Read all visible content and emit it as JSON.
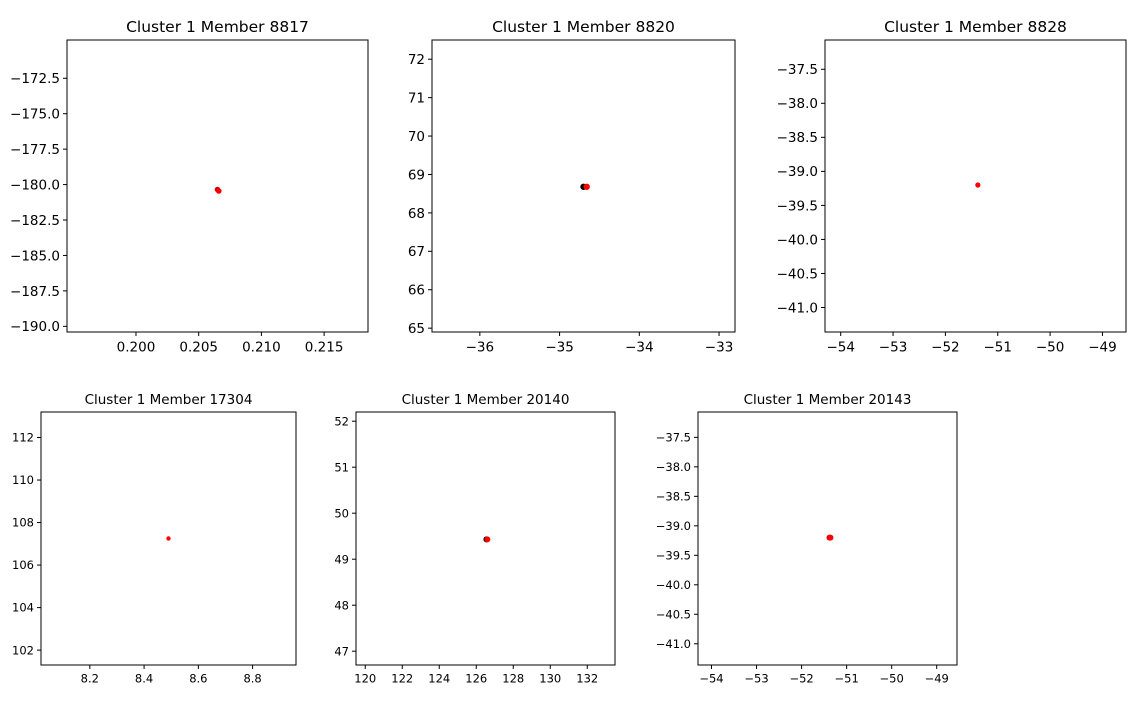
{
  "chart_data": [
    {
      "type": "scatter",
      "title": "Cluster 1 Member 8817",
      "xlim": [
        0.1945,
        0.2185
      ],
      "ylim": [
        -190.4,
        -169.8
      ],
      "xticks": [
        0.2,
        0.205,
        0.21,
        0.215
      ],
      "xtick_labels": [
        "0.200",
        "0.205",
        "0.210",
        "0.215"
      ],
      "yticks": [
        -172.5,
        -175.0,
        -177.5,
        -180.0,
        -182.5,
        -185.0,
        -187.5,
        -190.0
      ],
      "ytick_labels": [
        "−172.5",
        "−175.0",
        "−177.5",
        "−180.0",
        "−182.5",
        "−185.0",
        "−187.5",
        "−190.0"
      ],
      "points": [
        {
          "x": 0.2065,
          "y": -180.35,
          "color": "#cc0000"
        },
        {
          "x": 0.2066,
          "y": -180.45,
          "color": "#ff0000"
        }
      ]
    },
    {
      "type": "scatter",
      "title": "Cluster 1 Member 8820",
      "xlim": [
        -36.6,
        -32.8
      ],
      "ylim": [
        64.9,
        72.5
      ],
      "xticks": [
        -36,
        -35,
        -34,
        -33
      ],
      "xtick_labels": [
        "−36",
        "−35",
        "−34",
        "−33"
      ],
      "yticks": [
        65,
        66,
        67,
        68,
        69,
        70,
        71,
        72
      ],
      "ytick_labels": [
        "65",
        "66",
        "67",
        "68",
        "69",
        "70",
        "71",
        "72"
      ],
      "points": [
        {
          "x": -34.7,
          "y": 68.68,
          "color": "#000000"
        },
        {
          "x": -34.66,
          "y": 68.68,
          "color": "#ff0000"
        }
      ]
    },
    {
      "type": "scatter",
      "title": "Cluster 1 Member 8828",
      "xlim": [
        -54.3,
        -48.55
      ],
      "ylim": [
        -41.36,
        -37.07
      ],
      "xticks": [
        -54,
        -53,
        -52,
        -51,
        -50,
        -49
      ],
      "xtick_labels": [
        "−54",
        "−53",
        "−52",
        "−51",
        "−50",
        "−49"
      ],
      "yticks": [
        -37.5,
        -38.0,
        -38.5,
        -39.0,
        -39.5,
        -40.0,
        -40.5,
        -41.0
      ],
      "ytick_labels": [
        "−37.5",
        "−38.0",
        "−38.5",
        "−39.0",
        "−39.5",
        "−40.0",
        "−40.5",
        "−41.0"
      ],
      "points": [
        {
          "x": -51.38,
          "y": -39.2,
          "color": "#ff0000"
        }
      ]
    },
    {
      "type": "scatter",
      "title": "Cluster 1 Member 17304",
      "xlim": [
        8.02,
        8.96
      ],
      "ylim": [
        101.3,
        113.2
      ],
      "xticks": [
        8.2,
        8.4,
        8.6,
        8.8
      ],
      "xtick_labels": [
        "8.2",
        "8.4",
        "8.6",
        "8.8"
      ],
      "yticks": [
        102,
        104,
        106,
        108,
        110,
        112
      ],
      "ytick_labels": [
        "102",
        "104",
        "106",
        "108",
        "110",
        "112"
      ],
      "points": [
        {
          "x": 8.49,
          "y": 107.25,
          "color": "#ff0000"
        }
      ]
    },
    {
      "type": "scatter",
      "title": "Cluster 1 Member 20140",
      "xlim": [
        119.5,
        133.5
      ],
      "ylim": [
        46.7,
        52.2
      ],
      "xticks": [
        120,
        122,
        124,
        126,
        128,
        130,
        132
      ],
      "xtick_labels": [
        "120",
        "122",
        "124",
        "126",
        "128",
        "130",
        "132"
      ],
      "yticks": [
        47,
        48,
        49,
        50,
        51,
        52
      ],
      "ytick_labels": [
        "47",
        "48",
        "49",
        "50",
        "51",
        "52"
      ],
      "points": [
        {
          "x": 126.55,
          "y": 49.43,
          "color": "#000000"
        },
        {
          "x": 126.6,
          "y": 49.43,
          "color": "#ff0000"
        }
      ]
    },
    {
      "type": "scatter",
      "title": "Cluster 1 Member 20143",
      "xlim": [
        -54.3,
        -48.55
      ],
      "ylim": [
        -41.36,
        -37.07
      ],
      "xticks": [
        -54,
        -53,
        -52,
        -51,
        -50,
        -49
      ],
      "xtick_labels": [
        "−54",
        "−53",
        "−52",
        "−51",
        "−50",
        "−49"
      ],
      "yticks": [
        -37.5,
        -38.0,
        -38.5,
        -39.0,
        -39.5,
        -40.0,
        -40.5,
        -41.0
      ],
      "ytick_labels": [
        "−37.5",
        "−38.0",
        "−38.5",
        "−39.0",
        "−39.5",
        "−40.0",
        "−40.5",
        "−41.0"
      ],
      "points": [
        {
          "x": -51.38,
          "y": -39.2,
          "color": "#cc0000"
        },
        {
          "x": -51.36,
          "y": -39.2,
          "color": "#ff0000"
        }
      ]
    }
  ]
}
